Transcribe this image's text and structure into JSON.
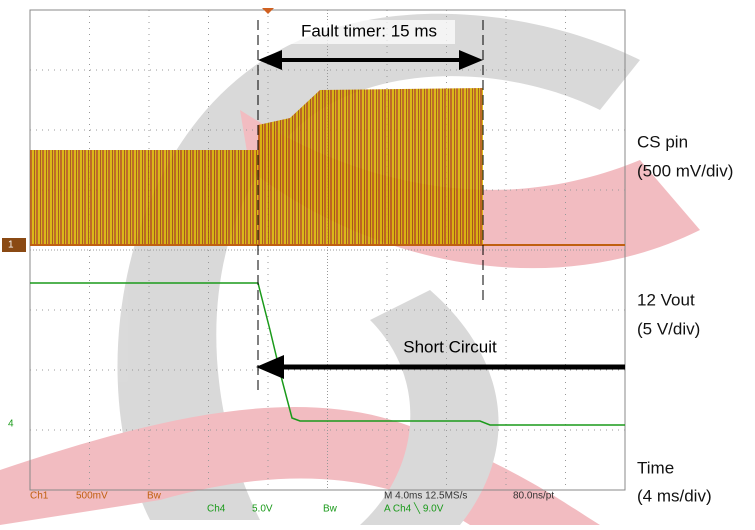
{
  "annotations": {
    "fault_timer": "Fault timer: 15 ms",
    "short_circuit": "Short Circuit"
  },
  "side_labels": {
    "cs_pin": "CS pin",
    "cs_scale": "(500 mV/div)",
    "vout": "12 Vout",
    "vout_scale": "(5 V/div)",
    "time": "Time",
    "time_scale": "(4 ms/div)"
  },
  "readout": {
    "ch1": "Ch1",
    "ch1_scale": "500mV",
    "ch1_bw": "Bw",
    "ch4": "Ch4",
    "ch4_scale": "5.0V",
    "ch4_bw": "Bw",
    "timebase": "M 4.0ms 12.5MS/s",
    "trigger": "A  Ch4  ╲  9.0V",
    "sample": "80.0ns/pt"
  },
  "markers": {
    "ch1": "1",
    "ch4": "4"
  }
}
